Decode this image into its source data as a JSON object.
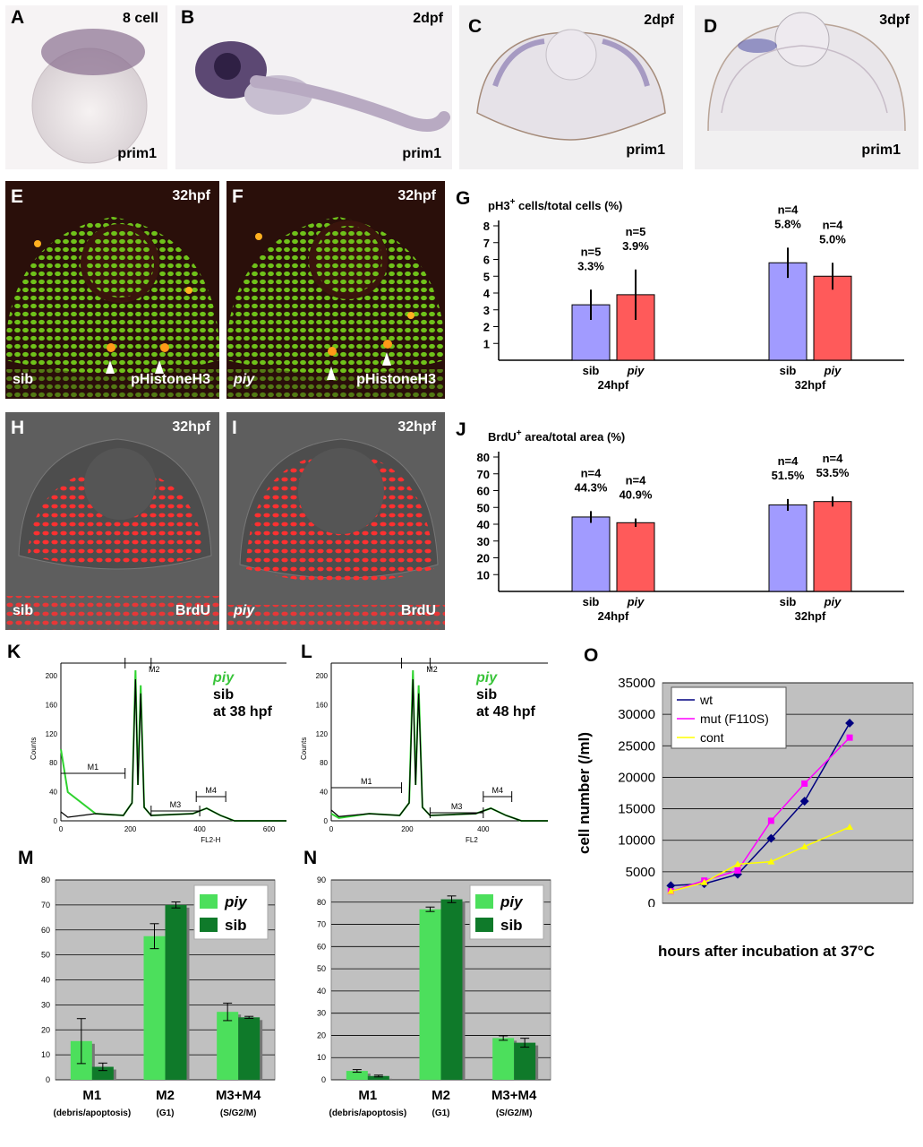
{
  "panels": {
    "A": {
      "letter": "A",
      "stage": "8 cell",
      "probe": "prim1"
    },
    "B": {
      "letter": "B",
      "stage": "2dpf",
      "probe": "prim1"
    },
    "C": {
      "letter": "C",
      "stage": "2dpf",
      "probe": "prim1"
    },
    "D": {
      "letter": "D",
      "stage": "3dpf",
      "probe": "prim1"
    },
    "E": {
      "letter": "E",
      "stage": "32hpf",
      "genotype": "sib",
      "stain": "pHistoneH3"
    },
    "F": {
      "letter": "F",
      "stage": "32hpf",
      "genotype": "piy",
      "stain": "pHistoneH3"
    },
    "H": {
      "letter": "H",
      "stage": "32hpf",
      "genotype": "sib",
      "stain": "BrdU"
    },
    "I": {
      "letter": "I",
      "stage": "32hpf",
      "genotype": "piy",
      "stain": "BrdU"
    },
    "K": {
      "letter": "K",
      "legend_piy": "piy",
      "legend_sib": "sib",
      "legend_time": "at 38 hpf",
      "xlabel": "FL2-H",
      "ylabel": "Counts",
      "gates": [
        "M1",
        "M2",
        "M3",
        "M4"
      ],
      "xticks": [
        "0",
        "200",
        "400",
        "600"
      ],
      "yticks": [
        "0",
        "40",
        "80",
        "120",
        "160",
        "200"
      ]
    },
    "L": {
      "letter": "L",
      "legend_piy": "piy",
      "legend_sib": "sib",
      "legend_time": "at 48 hpf",
      "xlabel": "FL2",
      "ylabel": "Counts",
      "gates": [
        "M1",
        "M2",
        "M3",
        "M4"
      ],
      "xticks": [
        "0",
        "200",
        "400"
      ],
      "yticks": [
        "0",
        "40",
        "80",
        "120",
        "160",
        "200"
      ]
    }
  },
  "colors": {
    "sib_bar": "#a19bff",
    "piy_bar": "#ff5a5a",
    "piy_light": "#4cdf5c",
    "sib_dark": "#0f7a2a",
    "wt": "#000080",
    "mut": "#ff00ff",
    "cont": "#ffff00",
    "chart_bg": "#c0c0c0"
  },
  "chart_data": [
    {
      "id": "G",
      "type": "bar",
      "title_prefix": "pH3",
      "title_sup": "+",
      "title_suffix": " cells/total cells (%)",
      "ylim": [
        0,
        8
      ],
      "yticks": [
        "1",
        "2",
        "3",
        "4",
        "5",
        "6",
        "7",
        "8"
      ],
      "groups": [
        {
          "label": "24hpf",
          "bars": [
            {
              "name": "sib",
              "value": 3.3,
              "err": 0.9,
              "n": "n=5",
              "pct": "3.3%"
            },
            {
              "name": "piy",
              "value": 3.9,
              "err": 1.5,
              "n": "n=5",
              "pct": "3.9%"
            }
          ]
        },
        {
          "label": "32hpf",
          "bars": [
            {
              "name": "sib",
              "value": 5.8,
              "err": 0.9,
              "n": "n=4",
              "pct": "5.8%"
            },
            {
              "name": "piy",
              "value": 5.0,
              "err": 0.8,
              "n": "n=4",
              "pct": "5.0%"
            }
          ]
        }
      ]
    },
    {
      "id": "J",
      "type": "bar",
      "title_prefix": "BrdU",
      "title_sup": "+",
      "title_suffix": " area/total area (%)",
      "ylim": [
        0,
        80
      ],
      "yticks": [
        "10",
        "20",
        "30",
        "40",
        "50",
        "60",
        "70",
        "80"
      ],
      "groups": [
        {
          "label": "24hpf",
          "bars": [
            {
              "name": "sib",
              "value": 44.3,
              "err": 3.5,
              "n": "n=4",
              "pct": "44.3%"
            },
            {
              "name": "piy",
              "value": 40.9,
              "err": 2.5,
              "n": "n=4",
              "pct": "40.9%"
            }
          ]
        },
        {
          "label": "32hpf",
          "bars": [
            {
              "name": "sib",
              "value": 51.5,
              "err": 3.5,
              "n": "n=4",
              "pct": "51.5%"
            },
            {
              "name": "piy",
              "value": 53.5,
              "err": 3.0,
              "n": "n=4",
              "pct": "53.5%"
            }
          ]
        }
      ]
    },
    {
      "id": "M",
      "type": "bar",
      "ylim": [
        0,
        80
      ],
      "yticks": [
        "0",
        "10",
        "20",
        "30",
        "40",
        "50",
        "60",
        "70",
        "80"
      ],
      "categories": [
        "M1",
        "M2",
        "M3+M4"
      ],
      "sublabels": [
        "(debris/apoptosis)",
        "(G1)",
        "(S/G2/M)"
      ],
      "series": [
        {
          "name": "piy",
          "values": [
            15.5,
            57.5,
            27.2
          ],
          "err": [
            9.0,
            5.0,
            3.5
          ]
        },
        {
          "name": "sib",
          "values": [
            5.2,
            70.0,
            25.0
          ],
          "err": [
            1.5,
            1.2,
            0.4
          ]
        }
      ]
    },
    {
      "id": "N",
      "type": "bar",
      "ylim": [
        0,
        90
      ],
      "yticks": [
        "0",
        "10",
        "20",
        "30",
        "40",
        "50",
        "60",
        "70",
        "80",
        "90"
      ],
      "categories": [
        "M1",
        "M2",
        "M3+M4"
      ],
      "sublabels": [
        "(debris/apoptosis)",
        "(G1)",
        "(S/G2/M)"
      ],
      "series": [
        {
          "name": "piy",
          "values": [
            4.0,
            76.8,
            18.8
          ],
          "err": [
            0.6,
            1.0,
            1.0
          ]
        },
        {
          "name": "sib",
          "values": [
            1.7,
            81.3,
            16.7
          ],
          "err": [
            0.4,
            1.5,
            2.0
          ]
        }
      ]
    },
    {
      "id": "O",
      "type": "line",
      "xlabel": "hours after incubation at 37°C",
      "ylabel": "cell number (/ml)",
      "xlim": [
        0,
        15
      ],
      "ylim": [
        0,
        35000
      ],
      "xticks": [
        "0",
        "5",
        "10",
        "15"
      ],
      "yticks": [
        "0",
        "5000",
        "10000",
        "15000",
        "20000",
        "25000",
        "30000",
        "35000"
      ],
      "series": [
        {
          "name": "wt",
          "x": [
            0.5,
            2.5,
            4.5,
            6.5,
            8.5,
            11.2
          ],
          "y": [
            2800,
            3100,
            4600,
            10300,
            16200,
            28600
          ]
        },
        {
          "name": "mut (F110S)",
          "x": [
            0.5,
            2.5,
            4.5,
            6.5,
            8.5,
            11.2
          ],
          "y": [
            1900,
            3600,
            5200,
            13100,
            19000,
            26300
          ]
        },
        {
          "name": "cont",
          "x": [
            0.5,
            2.5,
            4.5,
            6.5,
            8.5,
            11.2
          ],
          "y": [
            1900,
            3300,
            6200,
            6600,
            9000,
            12100
          ]
        }
      ]
    }
  ]
}
